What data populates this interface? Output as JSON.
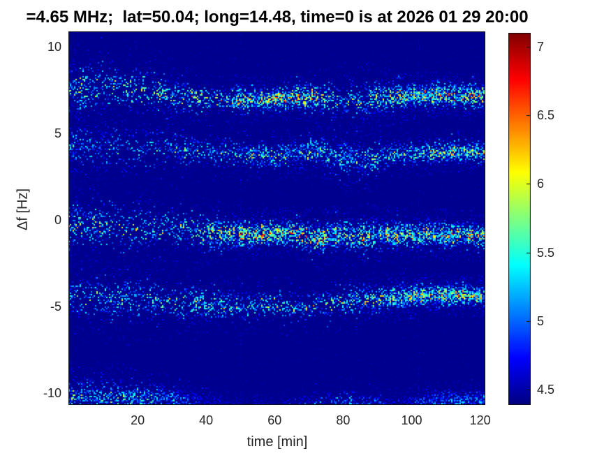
{
  "title": "=4.65 MHz;  lat=50.04; long=14.48, time=0 is at 2026 01 29 20:00",
  "colors": {
    "figure_background": "#ffffff",
    "plot_background": "#00008d",
    "title_text": "#000000",
    "tick_label": "#262626",
    "axis_label": "#262626",
    "axis_line": "#101010"
  },
  "chart_data": {
    "type": "heatmap",
    "variant": "doppler-shift-spectrogram",
    "title": "=4.65 MHz;  lat=50.04; long=14.48, time=0 is at 2026 01 29 20:00",
    "xlabel": "time [min]",
    "ylabel": "Δf [Hz]",
    "x_ticks": [
      20,
      40,
      60,
      80,
      100,
      120
    ],
    "y_ticks": [
      10,
      5,
      0,
      -5,
      -10
    ],
    "xlim": [
      -0.2,
      121.5
    ],
    "ylim": [
      -10.7,
      10.9
    ],
    "grid": false,
    "colormap": "jet",
    "colorbar_position": "right",
    "colorbar_ticks": [
      7,
      6.5,
      6,
      5.5,
      5,
      4.5
    ],
    "clim": [
      4.39,
      7.1
    ],
    "background_level": 4.45,
    "interference_line_hz": 4.1,
    "vertical_streaks_min": [
      50,
      102
    ],
    "bands": [
      {
        "name": "trace-plus-7.5Hz",
        "points": [
          [
            0,
            7.6,
            1.1,
            0.6
          ],
          [
            10,
            7.7,
            1.25,
            0.6
          ],
          [
            20,
            7.55,
            1.15,
            0.6
          ],
          [
            32,
            7.2,
            0.8,
            0.65
          ],
          [
            42,
            7.0,
            0.6,
            0.75
          ],
          [
            52,
            6.95,
            0.55,
            0.85
          ],
          [
            62,
            7.05,
            0.5,
            0.95
          ],
          [
            70,
            7.15,
            0.6,
            0.85
          ],
          [
            78,
            6.95,
            0.9,
            0.6
          ],
          [
            86,
            6.95,
            0.9,
            0.6
          ],
          [
            92,
            7.1,
            0.7,
            0.7
          ],
          [
            100,
            7.25,
            0.55,
            0.8
          ],
          [
            110,
            7.25,
            0.55,
            0.85
          ],
          [
            121,
            7.2,
            0.55,
            0.85
          ]
        ]
      },
      {
        "name": "trace-plus-4Hz",
        "points": [
          [
            0,
            4.3,
            1.0,
            0.4
          ],
          [
            12,
            4.25,
            1.15,
            0.42
          ],
          [
            24,
            4.15,
            1.05,
            0.45
          ],
          [
            35,
            4.0,
            0.8,
            0.5
          ],
          [
            45,
            3.9,
            0.65,
            0.55
          ],
          [
            55,
            3.75,
            0.6,
            0.6
          ],
          [
            63,
            3.8,
            0.65,
            0.62
          ],
          [
            72,
            4.0,
            0.6,
            0.62
          ],
          [
            80,
            3.6,
            0.85,
            0.5
          ],
          [
            88,
            3.55,
            0.8,
            0.5
          ],
          [
            95,
            3.85,
            0.6,
            0.62
          ],
          [
            105,
            3.95,
            0.55,
            0.7
          ],
          [
            114,
            3.95,
            0.5,
            0.75
          ],
          [
            121,
            3.9,
            0.5,
            0.75
          ]
        ]
      },
      {
        "name": "trace-minus-0.5Hz",
        "points": [
          [
            0,
            -0.2,
            1.05,
            0.62
          ],
          [
            10,
            -0.25,
            1.15,
            0.62
          ],
          [
            20,
            -0.4,
            1.1,
            0.62
          ],
          [
            30,
            -0.55,
            1.0,
            0.62
          ],
          [
            40,
            -0.65,
            0.8,
            0.68
          ],
          [
            50,
            -0.8,
            0.65,
            0.85
          ],
          [
            58,
            -0.75,
            0.6,
            0.95
          ],
          [
            66,
            -0.7,
            0.6,
            0.9
          ],
          [
            72,
            -1.05,
            0.75,
            0.85
          ],
          [
            78,
            -0.85,
            0.7,
            0.72
          ],
          [
            86,
            -0.9,
            0.75,
            0.72
          ],
          [
            95,
            -0.85,
            0.65,
            0.75
          ],
          [
            105,
            -0.8,
            0.6,
            0.8
          ],
          [
            113,
            -0.85,
            0.6,
            0.85
          ],
          [
            121,
            -0.9,
            0.6,
            0.85
          ]
        ]
      },
      {
        "name": "trace-minus-4.5Hz",
        "points": [
          [
            0,
            -4.4,
            1.0,
            0.5
          ],
          [
            12,
            -4.5,
            1.1,
            0.5
          ],
          [
            24,
            -4.6,
            1.0,
            0.52
          ],
          [
            36,
            -4.75,
            0.85,
            0.55
          ],
          [
            48,
            -4.9,
            0.7,
            0.6
          ],
          [
            58,
            -4.85,
            0.65,
            0.65
          ],
          [
            68,
            -5.0,
            0.7,
            0.62
          ],
          [
            78,
            -4.7,
            0.75,
            0.62
          ],
          [
            88,
            -4.55,
            0.65,
            0.65
          ],
          [
            98,
            -4.4,
            0.55,
            0.72
          ],
          [
            108,
            -4.3,
            0.5,
            0.8
          ],
          [
            116,
            -4.35,
            0.5,
            0.82
          ],
          [
            121,
            -4.4,
            0.5,
            0.8
          ]
        ]
      },
      {
        "name": "trace-minus-10Hz",
        "points": [
          [
            0,
            -10.2,
            0.8,
            0.55
          ],
          [
            12,
            -10.15,
            0.8,
            0.55
          ],
          [
            25,
            -10.3,
            0.65,
            0.5
          ],
          [
            33,
            -10.45,
            0.5,
            0.35
          ],
          [
            40,
            -10.55,
            0.4,
            0.15
          ],
          [
            50,
            -10.65,
            0.3,
            0.05
          ],
          [
            62,
            -10.6,
            0.35,
            0.08
          ],
          [
            72,
            -10.5,
            0.5,
            0.3
          ],
          [
            82,
            -10.45,
            0.55,
            0.38
          ],
          [
            90,
            -10.55,
            0.45,
            0.25
          ],
          [
            97,
            -10.65,
            0.4,
            0.15
          ],
          [
            104,
            -10.5,
            0.5,
            0.3
          ],
          [
            112,
            -10.45,
            0.5,
            0.35
          ],
          [
            121,
            -10.4,
            0.5,
            0.4
          ]
        ]
      }
    ]
  }
}
